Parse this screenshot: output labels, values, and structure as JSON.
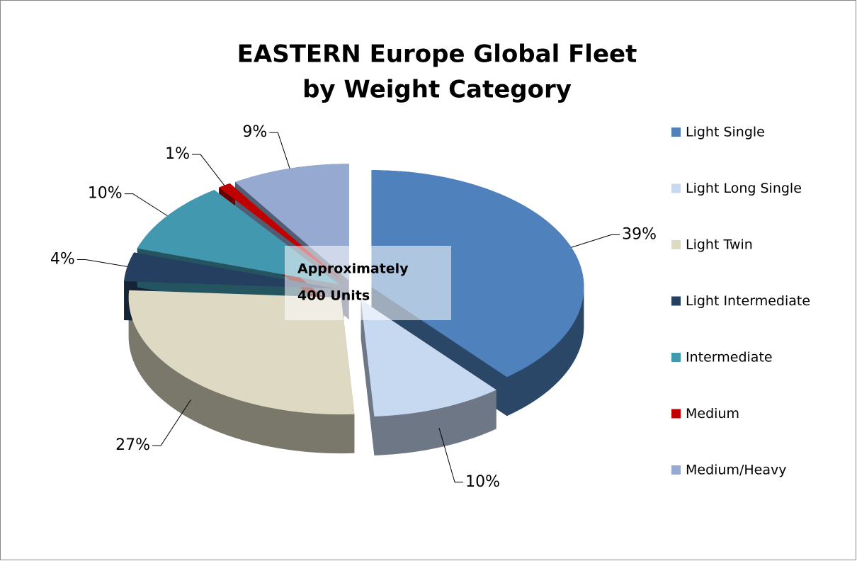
{
  "chart_data": {
    "type": "pie",
    "title": [
      "EASTERN Europe Global Fleet",
      "by Weight Category"
    ],
    "annotation": [
      "Approximately",
      "400 Units"
    ],
    "categories": [
      "Light Single",
      "Light Long Single",
      "Light Twin",
      "Light Intermediate",
      "Intermediate",
      "Medium",
      "Medium/Heavy"
    ],
    "values": [
      39,
      10,
      27,
      4,
      10,
      1,
      9
    ],
    "value_labels": [
      "39%",
      "10%",
      "27%",
      "4%",
      "10%",
      "1%",
      "9%"
    ],
    "colors": [
      "#4f81bd",
      "#c6d9f1",
      "#ddd9c3",
      "#243f60",
      "#4198af",
      "#c00000",
      "#95a9d1"
    ],
    "legend": "right"
  }
}
